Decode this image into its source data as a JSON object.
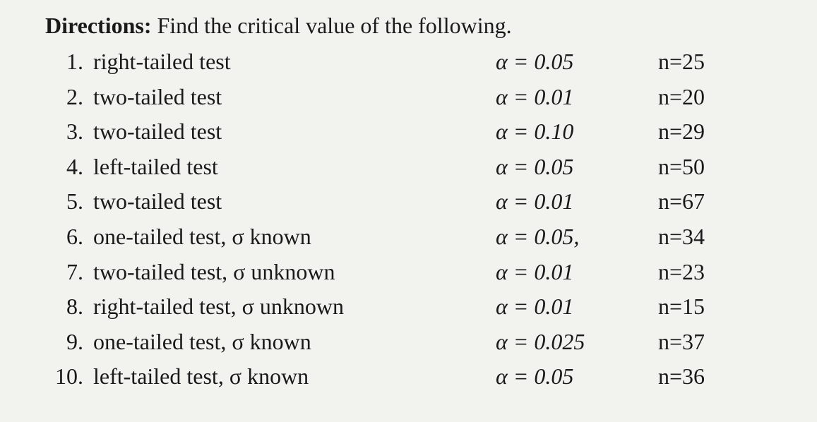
{
  "background_color": "#f2f2ef",
  "text_color": "#1a1a1a",
  "font_family": "Georgia, Times New Roman, serif",
  "font_size_pt": 24,
  "directions": {
    "label": "Directions:",
    "text": "Find the critical value of the following."
  },
  "alpha_symbol": "α",
  "sigma_symbol": "σ",
  "items": [
    {
      "num": "1.",
      "desc": "right-tailed test",
      "alpha": "α = 0.05",
      "n": "n=25"
    },
    {
      "num": "2.",
      "desc": "two-tailed test",
      "alpha": "α = 0.01",
      "n": "n=20"
    },
    {
      "num": "3.",
      "desc": "two-tailed test",
      "alpha": "α = 0.10",
      "n": "n=29"
    },
    {
      "num": "4.",
      "desc": "left-tailed test",
      "alpha": "α = 0.05",
      "n": "n=50"
    },
    {
      "num": "5.",
      "desc": "two-tailed test",
      "alpha": "α = 0.01",
      "n": "n=67"
    },
    {
      "num": "6.",
      "desc": "one-tailed test, σ known",
      "alpha": "α = 0.05,",
      "n": "n=34"
    },
    {
      "num": "7.",
      "desc": "two-tailed test, σ unknown",
      "alpha": "α = 0.01",
      "n": "n=23"
    },
    {
      "num": "8.",
      "desc": "right-tailed test, σ unknown",
      "alpha": "α = 0.01",
      "n": "n=15"
    },
    {
      "num": "9.",
      "desc": "one-tailed test, σ known",
      "alpha": "α = 0.025",
      "n": "n=37"
    },
    {
      "num": "10.",
      "desc": "left-tailed test, σ known",
      "alpha": "α = 0.05",
      "n": "n=36"
    }
  ]
}
